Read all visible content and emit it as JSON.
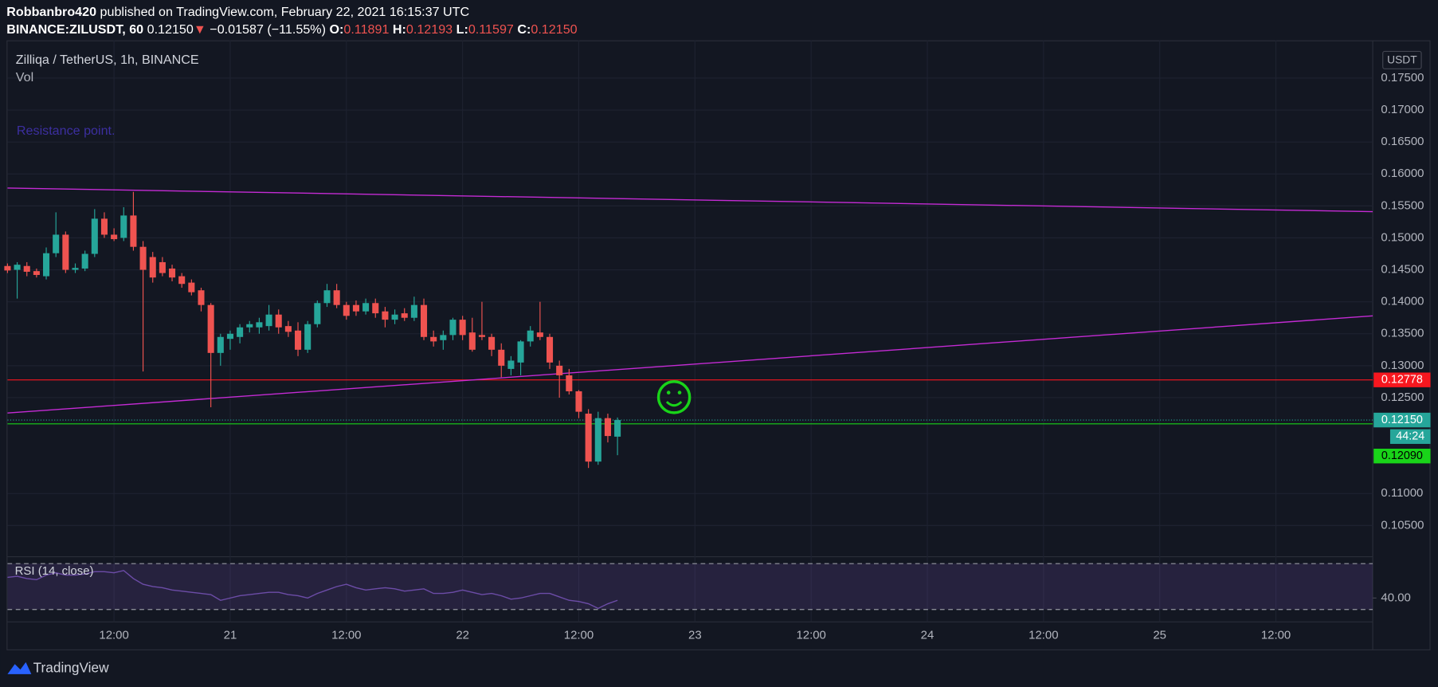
{
  "header": {
    "author": "Robbanbro420",
    "published": "published on TradingView.com, February 22, 2021 16:15:37 UTC",
    "symbol": "BINANCE:ZILUSDT, 60",
    "last": "0.12150",
    "arrow": "▼",
    "change": "−0.01587 (−11.55%)",
    "o_label": "O:",
    "open": "0.11891",
    "h_label": "H:",
    "high": "0.12193",
    "l_label": "L:",
    "low": "0.11597",
    "c_label": "C:",
    "close": "0.12150"
  },
  "chart_data": {
    "type": "candlestick",
    "title": "Zilliqa / TetherUS, 1h, BINANCE",
    "subtitle": "Vol",
    "annotation": "Resistance point.",
    "currency": "USDT",
    "x": [
      1,
      2,
      3,
      4,
      5,
      6,
      7,
      8,
      9,
      10,
      11,
      12,
      13,
      14,
      15,
      16,
      17,
      18,
      19,
      20,
      21,
      22,
      23,
      24,
      25,
      26,
      27,
      28,
      29,
      30,
      31,
      32,
      33,
      34,
      35,
      36,
      37,
      38,
      39,
      40,
      41,
      42,
      43,
      44,
      45,
      46,
      47,
      48,
      49,
      50,
      51,
      52,
      53,
      54,
      55,
      56,
      57,
      58,
      59,
      60,
      61,
      62,
      63,
      64
    ],
    "open": [
      0.1456,
      0.145,
      0.1456,
      0.1448,
      0.144,
      0.1476,
      0.1505,
      0.145,
      0.1452,
      0.1475,
      0.153,
      0.1505,
      0.15,
      0.1535,
      0.1486,
      0.147,
      0.1462,
      0.1452,
      0.144,
      0.143,
      0.1418,
      0.1395,
      0.132,
      0.1342,
      0.1345,
      0.136,
      0.136,
      0.1362,
      0.138,
      0.1362,
      0.1355,
      0.1325,
      0.1365,
      0.1398,
      0.1418,
      0.1395,
      0.1395,
      0.1385,
      0.1398,
      0.1385,
      0.1372,
      0.1382,
      0.1375,
      0.1395,
      0.1345,
      0.134,
      0.1348,
      0.1372,
      0.1352,
      0.1348,
      0.1345,
      0.1325,
      0.1295,
      0.1305,
      0.1338,
      0.1352,
      0.1345,
      0.13,
      0.1285,
      0.126,
      0.1225,
      0.115,
      0.1218,
      0.1189
    ],
    "high": [
      0.146,
      0.1462,
      0.1462,
      0.1452,
      0.1485,
      0.154,
      0.151,
      0.146,
      0.148,
      0.1545,
      0.154,
      0.1515,
      0.1548,
      0.1572,
      0.1495,
      0.1478,
      0.147,
      0.1458,
      0.1445,
      0.1435,
      0.1422,
      0.1398,
      0.135,
      0.1355,
      0.1365,
      0.137,
      0.1375,
      0.1395,
      0.1388,
      0.137,
      0.1368,
      0.137,
      0.1402,
      0.1428,
      0.1428,
      0.14,
      0.1402,
      0.1405,
      0.1405,
      0.1392,
      0.1388,
      0.139,
      0.1408,
      0.1405,
      0.1355,
      0.1355,
      0.1375,
      0.1378,
      0.1375,
      0.14,
      0.135,
      0.1335,
      0.1315,
      0.134,
      0.1362,
      0.14,
      0.135,
      0.1308,
      0.1295,
      0.1262,
      0.1232,
      0.1228,
      0.1225,
      0.1219
    ],
    "low": [
      0.1445,
      0.1405,
      0.144,
      0.1438,
      0.1435,
      0.147,
      0.1445,
      0.1445,
      0.1448,
      0.147,
      0.15,
      0.1495,
      0.1495,
      0.148,
      0.1291,
      0.143,
      0.144,
      0.1432,
      0.1422,
      0.141,
      0.1385,
      0.1235,
      0.13,
      0.1325,
      0.1335,
      0.1352,
      0.135,
      0.1355,
      0.135,
      0.1345,
      0.1315,
      0.132,
      0.136,
      0.1392,
      0.139,
      0.1372,
      0.1378,
      0.138,
      0.1375,
      0.136,
      0.1365,
      0.137,
      0.137,
      0.134,
      0.133,
      0.1325,
      0.134,
      0.134,
      0.1322,
      0.134,
      0.1315,
      0.1282,
      0.1285,
      0.1285,
      0.133,
      0.134,
      0.1295,
      0.125,
      0.1255,
      0.1218,
      0.114,
      0.1145,
      0.118,
      0.116
    ],
    "close": [
      0.1449,
      0.1458,
      0.1447,
      0.1442,
      0.1476,
      0.1505,
      0.145,
      0.1453,
      0.1475,
      0.153,
      0.1505,
      0.1498,
      0.1535,
      0.1486,
      0.145,
      0.1438,
      0.1445,
      0.1438,
      0.1428,
      0.1415,
      0.1395,
      0.132,
      0.1345,
      0.135,
      0.136,
      0.1365,
      0.1368,
      0.138,
      0.136,
      0.1353,
      0.1325,
      0.1365,
      0.1398,
      0.1418,
      0.1395,
      0.1378,
      0.1385,
      0.1398,
      0.1382,
      0.1372,
      0.138,
      0.1375,
      0.1395,
      0.1345,
      0.1338,
      0.1348,
      0.1372,
      0.1348,
      0.1325,
      0.1345,
      0.1325,
      0.13,
      0.1308,
      0.1338,
      0.1355,
      0.1345,
      0.1305,
      0.1285,
      0.126,
      0.1228,
      0.115,
      0.1218,
      0.119,
      0.1215
    ],
    "up_color": "#26a69a",
    "down_color": "#ef5350",
    "xlim": [
      1,
      142
    ],
    "xticks": [
      {
        "value": 12,
        "label": "12:00"
      },
      {
        "value": 24,
        "label": "21"
      },
      {
        "value": 36,
        "label": "12:00"
      },
      {
        "value": 48,
        "label": "22"
      },
      {
        "value": 60,
        "label": "12:00"
      },
      {
        "value": 72,
        "label": "23"
      },
      {
        "value": 84,
        "label": "12:00"
      },
      {
        "value": 96,
        "label": "24"
      },
      {
        "value": 108,
        "label": "12:00"
      },
      {
        "value": 120,
        "label": "25"
      },
      {
        "value": 132,
        "label": "12:00"
      }
    ],
    "ylim": [
      0.1004,
      0.1809
    ],
    "yticks": [
      {
        "value": 0.175,
        "label": "0.17500"
      },
      {
        "value": 0.17,
        "label": "0.17000"
      },
      {
        "value": 0.165,
        "label": "0.16500"
      },
      {
        "value": 0.16,
        "label": "0.16000"
      },
      {
        "value": 0.155,
        "label": "0.15500"
      },
      {
        "value": 0.15,
        "label": "0.15000"
      },
      {
        "value": 0.145,
        "label": "0.14500"
      },
      {
        "value": 0.14,
        "label": "0.14000"
      },
      {
        "value": 0.135,
        "label": "0.13500"
      },
      {
        "value": 0.13,
        "label": "0.13000"
      },
      {
        "value": 0.125,
        "label": "0.12500"
      },
      {
        "value": 0.11,
        "label": "0.11000"
      },
      {
        "value": 0.105,
        "label": "0.10500"
      }
    ],
    "grid": true,
    "trend_lines": [
      {
        "start": 0.1578,
        "end": 0.1541,
        "color": "#c42bd4"
      },
      {
        "start": 0.1226,
        "end": 0.1378,
        "color": "#c42bd4"
      }
    ],
    "levels": [
      {
        "value": 0.12778,
        "label": "0.12778",
        "color": "#f7171f",
        "text_color": "#ffffff"
      },
      {
        "value": 0.1209,
        "label": "0.12090",
        "color": "#19d419",
        "text_color": "#000000"
      }
    ],
    "last_price": {
      "value": 0.1215,
      "label": "0.12150",
      "countdown": "44:24",
      "color": "#26a69a"
    },
    "rsi": {
      "title": "RSI (14, close)",
      "color": "#7e57c2",
      "ylim": [
        19.2,
        75.2
      ],
      "bands": [
        30,
        70
      ],
      "yticks": [
        {
          "value": 40,
          "label": "40.00"
        }
      ],
      "values": [
        58,
        59,
        57,
        56,
        60,
        62,
        60,
        60,
        61,
        63,
        63,
        62,
        64,
        57,
        52,
        50,
        49,
        47,
        46,
        45,
        44,
        43,
        38,
        40,
        42,
        43,
        44,
        45,
        45,
        43,
        42,
        40,
        44,
        47,
        50,
        52,
        49,
        47,
        48,
        49,
        48,
        46,
        47,
        48,
        44,
        44,
        45,
        47,
        45,
        43,
        44,
        42,
        39,
        40,
        42,
        44,
        44,
        41,
        38,
        37,
        35,
        31,
        35,
        38
      ]
    }
  },
  "footer": {
    "brand": "TradingView"
  }
}
